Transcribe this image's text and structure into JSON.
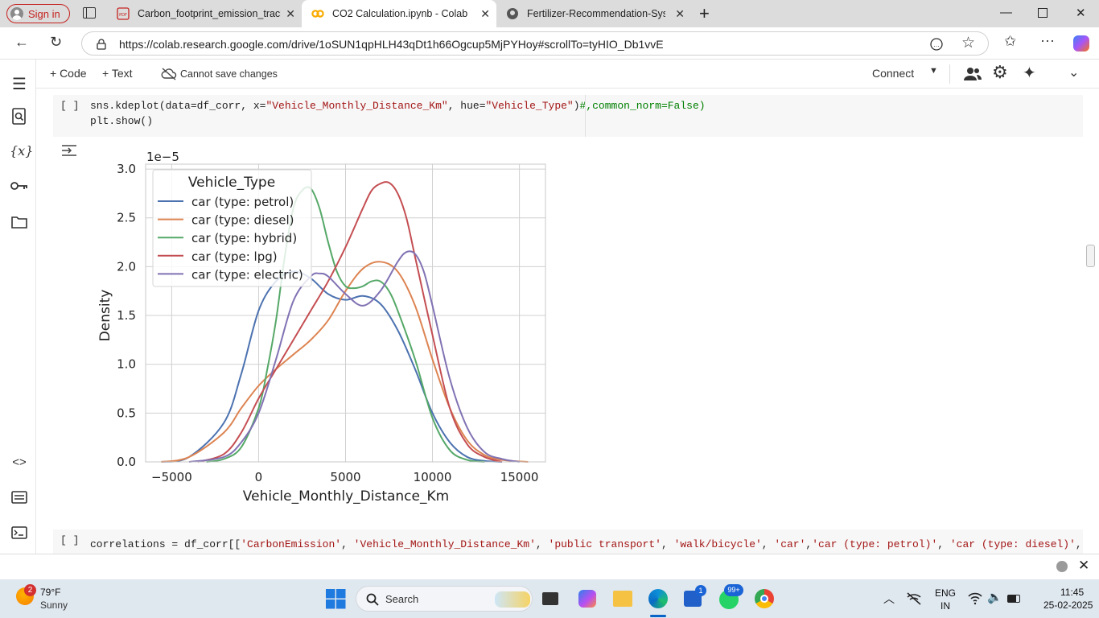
{
  "browser": {
    "sign_in": "Sign in",
    "tabs": [
      {
        "title": "Carbon_footprint_emission_trackin",
        "icon": "pdf-icon"
      },
      {
        "title": "CO2 Calculation.ipynb - Colab",
        "icon": "colab-icon"
      },
      {
        "title": "Fertilizer-Recommendation-Syste",
        "icon": "github-icon"
      }
    ],
    "url": "https://colab.research.google.com/drive/1oSUN1qpHLH43qDt1h66Ogcup5MjPYHoy#scrollTo=tyHIO_Db1vvE"
  },
  "colab": {
    "code_btn": "+ Code",
    "text_btn": "+ Text",
    "save_status": "Cannot save changes",
    "connect": "Connect"
  },
  "cell1": {
    "bracket": "[ ]",
    "line1": [
      "sns.kdeplot(data=df_corr, x=",
      "\"Vehicle_Monthly_Distance_Km\"",
      ", hue=",
      "\"Vehicle_Type\"",
      ")",
      "#,common_norm=False)"
    ],
    "line2": "plt.show()"
  },
  "cell2": {
    "bracket": "[ ]",
    "line1": [
      "correlations = df_corr[[",
      "'CarbonEmission'",
      ", ",
      "'Vehicle_Monthly_Distance_Km'",
      ", ",
      "'public transport'",
      ", ",
      "'walk/bicycle'",
      ", ",
      "'car'",
      ",",
      "'car (type: petrol)'",
      ", ",
      "'car (type: diesel)'",
      ","
    ]
  },
  "chart_data": {
    "type": "line",
    "xlabel": "Vehicle_Monthly_Distance_Km",
    "ylabel": "Density",
    "y_scale_label": "1e−5",
    "xlim": [
      -6500,
      16500
    ],
    "ylim": [
      0,
      3.05
    ],
    "xticks": [
      -5000,
      0,
      5000,
      10000,
      15000
    ],
    "xtick_labels": [
      "−5000",
      "0",
      "5000",
      "10000",
      "15000"
    ],
    "yticks": [
      0,
      0.5,
      1.0,
      1.5,
      2.0,
      2.5,
      3.0
    ],
    "ytick_labels": [
      "0.0",
      "0.5",
      "1.0",
      "1.5",
      "2.0",
      "2.5",
      "3.0"
    ],
    "grid": true,
    "legend_title": "Vehicle_Type",
    "legend_position": "top-left",
    "series": [
      {
        "name": "car (type: petrol)",
        "color": "#4c72b0",
        "x": [
          -5600,
          -4000,
          -2000,
          -1000,
          0,
          1000,
          2000,
          3000,
          4000,
          5000,
          6000,
          7000,
          8000,
          9000,
          10000,
          11000,
          12000,
          13000,
          14000
        ],
        "y": [
          0,
          0.05,
          0.4,
          0.9,
          1.55,
          1.85,
          1.95,
          1.88,
          1.72,
          1.66,
          1.7,
          1.62,
          1.35,
          0.95,
          0.5,
          0.2,
          0.05,
          0.01,
          0
        ]
      },
      {
        "name": "car (type: diesel)",
        "color": "#dd8452",
        "x": [
          -5600,
          -4000,
          -2000,
          -1000,
          0,
          1000,
          2000,
          3000,
          4000,
          5000,
          6000,
          7000,
          8000,
          9000,
          10000,
          11000,
          12000,
          13000,
          14000,
          15500
        ],
        "y": [
          0,
          0.05,
          0.3,
          0.55,
          0.78,
          0.95,
          1.1,
          1.25,
          1.45,
          1.75,
          1.98,
          2.05,
          1.95,
          1.6,
          1.05,
          0.55,
          0.22,
          0.07,
          0.02,
          0
        ]
      },
      {
        "name": "car (type: hybrid)",
        "color": "#55a868",
        "x": [
          -3000,
          -2000,
          -1000,
          0,
          500,
          1000,
          1500,
          2000,
          2500,
          3000,
          3500,
          4000,
          4500,
          5000,
          5500,
          6000,
          6500,
          7000,
          7500,
          8000,
          9000,
          10000,
          11000,
          12000,
          13000
        ],
        "y": [
          0,
          0.03,
          0.15,
          0.55,
          0.95,
          1.45,
          2.1,
          2.6,
          2.78,
          2.8,
          2.6,
          2.25,
          1.95,
          1.8,
          1.78,
          1.8,
          1.85,
          1.85,
          1.75,
          1.55,
          1.05,
          0.45,
          0.12,
          0.02,
          0
        ]
      },
      {
        "name": "car (type: lpg)",
        "color": "#c44e52",
        "x": [
          -3500,
          -2000,
          -1000,
          0,
          1000,
          2000,
          3000,
          4000,
          5000,
          6000,
          6500,
          7000,
          7500,
          8000,
          8500,
          9000,
          10000,
          11000,
          12000,
          13000,
          14000
        ],
        "y": [
          0,
          0.08,
          0.3,
          0.65,
          0.95,
          1.25,
          1.55,
          1.85,
          2.2,
          2.6,
          2.78,
          2.85,
          2.86,
          2.75,
          2.5,
          2.1,
          1.3,
          0.55,
          0.18,
          0.05,
          0
        ]
      },
      {
        "name": "car (type: electric)",
        "color": "#8172b3",
        "x": [
          -4000,
          -2000,
          -1000,
          0,
          1000,
          2000,
          3000,
          3500,
          4000,
          5000,
          6000,
          7000,
          8000,
          8500,
          9000,
          9500,
          10000,
          11000,
          12000,
          13000,
          14000,
          15000
        ],
        "y": [
          0,
          0.05,
          0.2,
          0.5,
          1.05,
          1.65,
          1.9,
          1.93,
          1.9,
          1.72,
          1.6,
          1.75,
          2.05,
          2.15,
          2.13,
          1.95,
          1.6,
          0.85,
          0.35,
          0.1,
          0.03,
          0
        ]
      }
    ]
  },
  "notification_bar": {},
  "taskbar": {
    "weather_badge": "2",
    "temperature": "79°F",
    "weather": "Sunny",
    "search": "Search",
    "lang1": "ENG",
    "lang2": "IN",
    "time": "11:45",
    "date": "25-02-2025",
    "store_badge": "1",
    "whatsapp_badge": "99+"
  },
  "colors": {
    "accent": "#c5221f",
    "tab_strip": "#dcdcdc",
    "cell_bg": "#f7f7f7",
    "taskbar": "#dfe7ef"
  }
}
